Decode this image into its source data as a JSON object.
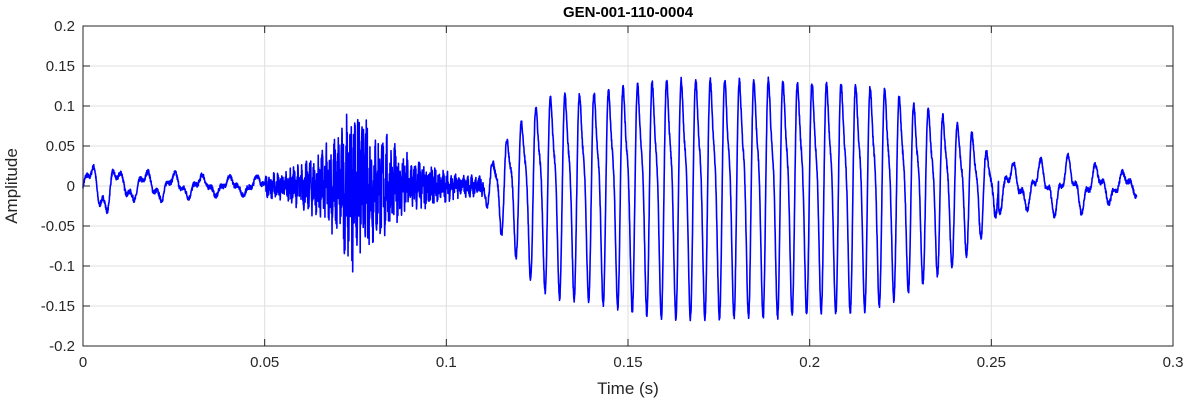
{
  "chart_data": {
    "type": "line",
    "title": "GEN-001-110-0004",
    "xlabel": "Time (s)",
    "ylabel": "Amplitude",
    "xlim": [
      0,
      0.3
    ],
    "ylim": [
      -0.2,
      0.2
    ],
    "xticks": [
      0,
      0.05,
      0.1,
      0.15,
      0.2,
      0.25,
      0.3
    ],
    "xtick_labels": [
      "0",
      "0.05",
      "0.1",
      "0.15",
      "0.2",
      "0.25",
      "0.3"
    ],
    "yticks": [
      -0.2,
      -0.15,
      -0.1,
      -0.05,
      0,
      0.05,
      0.1,
      0.15,
      0.2
    ],
    "ytick_labels": [
      "-0.2",
      "-0.15",
      "-0.1",
      "-0.05",
      "0",
      "0.05",
      "0.1",
      "0.15",
      "0.2"
    ],
    "grid": true,
    "line_color": "#0000ff",
    "series": [
      {
        "x": [
          0,
          0.29
        ],
        "envelope": [
          [
            0.0,
            0.01
          ],
          [
            0.002,
            0.03
          ],
          [
            0.004,
            0.035
          ],
          [
            0.007,
            0.04
          ],
          [
            0.01,
            0.02
          ],
          [
            0.015,
            0.02
          ],
          [
            0.02,
            0.02
          ],
          [
            0.03,
            0.015
          ],
          [
            0.04,
            0.012
          ],
          [
            0.045,
            0.012
          ],
          [
            0.05,
            0.015
          ],
          [
            0.055,
            0.02
          ],
          [
            0.06,
            0.03
          ],
          [
            0.065,
            0.045
          ],
          [
            0.068,
            0.06
          ],
          [
            0.07,
            0.07
          ],
          [
            0.072,
            0.09
          ],
          [
            0.074,
            0.11
          ],
          [
            0.076,
            0.105
          ],
          [
            0.078,
            0.09
          ],
          [
            0.08,
            0.08
          ],
          [
            0.083,
            0.07
          ],
          [
            0.086,
            0.055
          ],
          [
            0.09,
            0.04
          ],
          [
            0.095,
            0.03
          ],
          [
            0.1,
            0.02
          ],
          [
            0.105,
            0.015
          ],
          [
            0.11,
            0.015
          ],
          [
            0.112,
            0.03
          ],
          [
            0.115,
            0.06
          ],
          [
            0.118,
            0.08
          ],
          [
            0.122,
            0.11
          ],
          [
            0.126,
            0.13
          ],
          [
            0.13,
            0.14
          ],
          [
            0.14,
            0.145
          ],
          [
            0.15,
            0.155
          ],
          [
            0.16,
            0.165
          ],
          [
            0.17,
            0.165
          ],
          [
            0.18,
            0.165
          ],
          [
            0.19,
            0.165
          ],
          [
            0.2,
            0.16
          ],
          [
            0.21,
            0.16
          ],
          [
            0.22,
            0.15
          ],
          [
            0.23,
            0.125
          ],
          [
            0.24,
            0.1
          ],
          [
            0.245,
            0.08
          ],
          [
            0.248,
            0.06
          ],
          [
            0.25,
            0.04
          ],
          [
            0.255,
            0.03
          ],
          [
            0.26,
            0.03
          ],
          [
            0.27,
            0.04
          ],
          [
            0.275,
            0.035
          ],
          [
            0.28,
            0.025
          ],
          [
            0.285,
            0.02
          ],
          [
            0.29,
            0.015
          ]
        ]
      }
    ]
  }
}
